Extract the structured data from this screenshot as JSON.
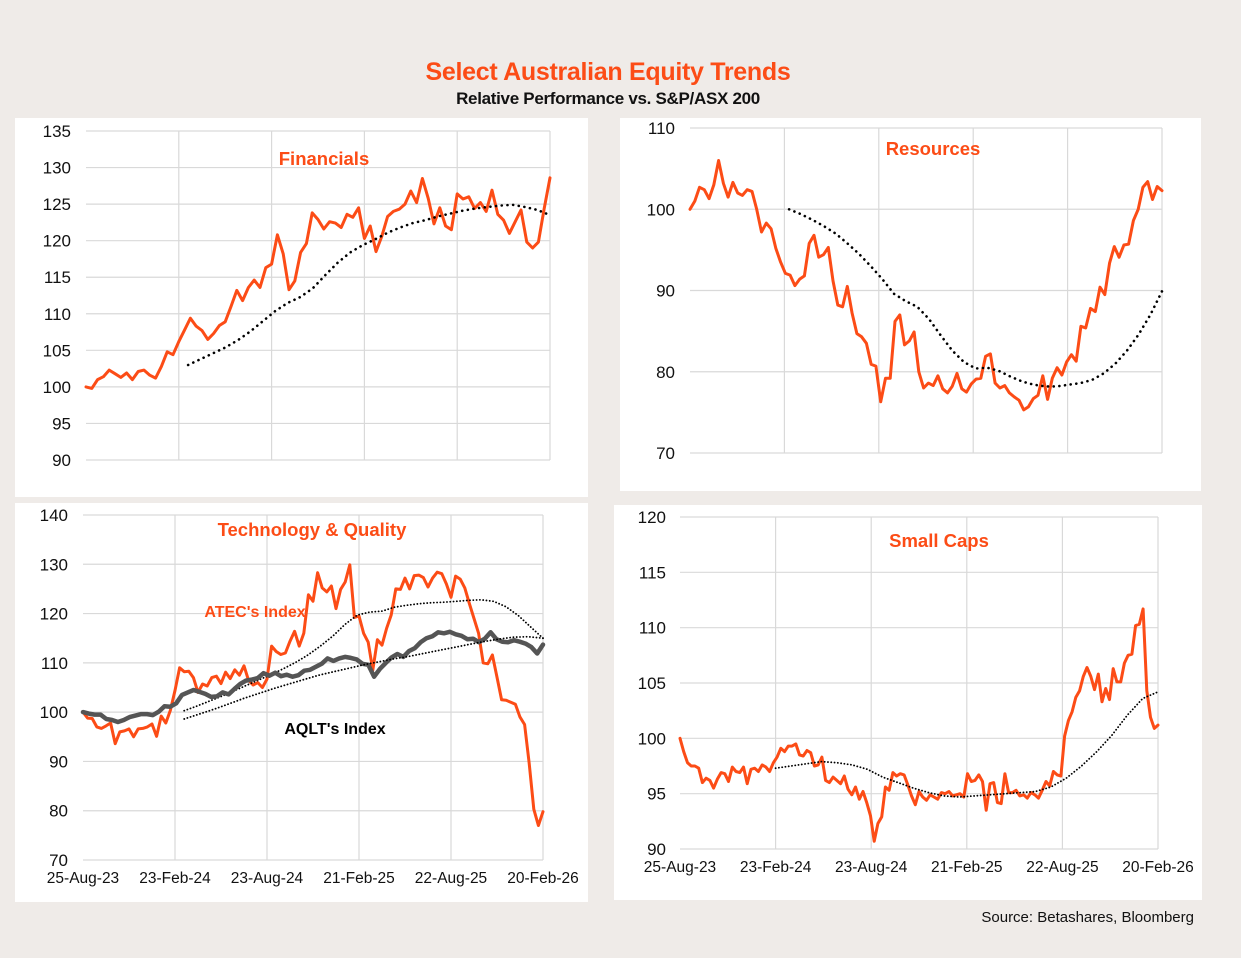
{
  "header": {
    "title": "Select Australian Equity Trends",
    "subtitle": "Relative Performance vs. S&P/ASX 200"
  },
  "source": "Source:  Betashares, Bloomberg",
  "colors": {
    "accent": "#fc4c16",
    "aqlt": "#555555",
    "trend": "#000000",
    "grid": "#d9d9d9",
    "background": "#efebe8"
  },
  "x_tick_labels": [
    "25-Aug-23",
    "23-Feb-24",
    "23-Aug-24",
    "21-Feb-25",
    "22-Aug-25",
    "20-Feb-26"
  ],
  "chart_data": [
    {
      "id": "financials",
      "type": "line",
      "title": "Financials",
      "xlabel": "",
      "ylabel": "",
      "x_range": [
        "25-Aug-23",
        "20-Feb-26"
      ],
      "x_ticks": [
        "25-Aug-23",
        "23-Feb-24",
        "23-Aug-24",
        "21-Feb-25",
        "22-Aug-25",
        "20-Feb-26"
      ],
      "show_x_tick_labels": false,
      "ylim": [
        90,
        135
      ],
      "yticks": [
        90,
        95,
        100,
        105,
        110,
        115,
        120,
        125,
        130,
        135
      ],
      "grid": true,
      "series": [
        {
          "name": "Financials",
          "style": "solid",
          "color": "#fc4c16",
          "start": 0,
          "values": [
            100,
            99.8,
            101,
            101.4,
            102.3,
            101.8,
            101.3,
            101.9,
            101,
            102.1,
            102.3,
            101.6,
            101.2,
            102.8,
            104.8,
            104.4,
            106.2,
            107.8,
            109.4,
            108.3,
            107.7,
            106.5,
            107.3,
            108.4,
            108.9,
            111,
            113.2,
            111.8,
            113.6,
            114.6,
            113.6,
            116.3,
            116.8,
            120.8,
            118.2,
            113.3,
            114.5,
            118.4,
            119.6,
            123.8,
            122.9,
            121.6,
            122.6,
            122.4,
            121.8,
            123.6,
            123.2,
            124.5,
            120.3,
            122,
            118.5,
            120.6,
            123.3,
            124,
            124.3,
            125,
            126.8,
            125.2,
            128.5,
            125.8,
            122.3,
            124.5,
            122,
            121.5,
            126.4,
            125.7,
            126,
            124.4,
            125.2,
            124,
            126.9,
            123.6,
            122.8,
            121,
            122.6,
            124.2,
            119.8,
            119,
            119.8,
            124.4,
            128.6
          ]
        },
        {
          "name": "Trend",
          "style": "dotted",
          "color": "#000000",
          "start": 0.22,
          "values": [
            103,
            103.8,
            104.6,
            105.4,
            106.4,
            107.6,
            109,
            110.4,
            111.5,
            112.3,
            113.5,
            115.3,
            117,
            118.4,
            119.4,
            120.2,
            121.1,
            121.8,
            122.4,
            122.8,
            123.3,
            123.7,
            124.1,
            124.4,
            124.6,
            124.8,
            124.9,
            124.6,
            124.2,
            123.5
          ]
        }
      ]
    },
    {
      "id": "resources",
      "type": "line",
      "title": "Resources",
      "xlabel": "",
      "ylabel": "",
      "x_range": [
        "25-Aug-23",
        "20-Feb-26"
      ],
      "x_ticks": [
        "25-Aug-23",
        "23-Feb-24",
        "23-Aug-24",
        "21-Feb-25",
        "22-Aug-25",
        "20-Feb-26"
      ],
      "show_x_tick_labels": false,
      "ylim": [
        70,
        110
      ],
      "yticks": [
        70,
        80,
        90,
        100,
        110
      ],
      "grid": true,
      "series": [
        {
          "name": "Resources",
          "style": "solid",
          "color": "#fc4c16",
          "start": 0,
          "values": [
            100,
            101,
            102.7,
            102.4,
            101.3,
            103,
            106,
            103.2,
            101.5,
            103.3,
            102,
            101.7,
            102.4,
            102.2,
            100,
            97.2,
            98.3,
            97.6,
            95.2,
            93.5,
            92.1,
            91.9,
            90.6,
            91.4,
            91.8,
            95.8,
            96.8,
            94.1,
            94.4,
            95.3,
            91.2,
            88.2,
            88,
            90.5,
            87.2,
            84.7,
            84.3,
            83.5,
            80.9,
            80.7,
            76.3,
            79.2,
            79.2,
            86.2,
            87,
            83.3,
            83.8,
            84.9,
            80,
            78,
            78.6,
            78.3,
            79.5,
            77.9,
            77.4,
            78.2,
            79.8,
            77.9,
            77.5,
            78.5,
            79.1,
            79.2,
            81.9,
            82.2,
            78.6,
            78,
            78.3,
            77.4,
            76.9,
            76.5,
            75.3,
            75.7,
            76.7,
            77.1,
            79.5,
            76.6,
            79.2,
            80.5,
            79.6,
            81.2,
            82.1,
            81.3,
            85.6,
            85.4,
            87.8,
            87.4,
            90.4,
            89.5,
            93.4,
            95.4,
            94.1,
            95.6,
            95.7,
            98.6,
            100,
            102.7,
            103.4,
            101.2,
            102.8,
            102.3
          ]
        },
        {
          "name": "Trend",
          "style": "dotted",
          "color": "#000000",
          "start": 0.21,
          "values": [
            100,
            99.4,
            98.7,
            97.9,
            97,
            95.8,
            94.5,
            93,
            91.4,
            89.6,
            88.7,
            88,
            86.5,
            84.5,
            82.6,
            81.2,
            80.4,
            80.5,
            80.1,
            79.4,
            78.8,
            78.4,
            78.2,
            78.2,
            78.4,
            78.6,
            79,
            79.8,
            81,
            82.6,
            84.6,
            87,
            89.9
          ]
        }
      ]
    },
    {
      "id": "technology-quality",
      "type": "line",
      "title": "Technology & Quality",
      "xlabel": "",
      "ylabel": "",
      "x_range": [
        "25-Aug-23",
        "20-Feb-26"
      ],
      "x_ticks": [
        "25-Aug-23",
        "23-Feb-24",
        "23-Aug-24",
        "21-Feb-25",
        "22-Aug-25",
        "20-Feb-26"
      ],
      "show_x_tick_labels": true,
      "ylim": [
        70,
        140
      ],
      "yticks": [
        70,
        80,
        90,
        100,
        110,
        120,
        130,
        140
      ],
      "grid": true,
      "annotations": [
        {
          "text": "ATEC's Index",
          "color": "#fc4c16"
        },
        {
          "text": "AQLT's Index",
          "color": "#000000"
        }
      ],
      "series": [
        {
          "name": "ATEC's Index",
          "style": "solid",
          "color": "#fc4c16",
          "start": 0,
          "values": [
            100,
            98.8,
            98.7,
            97,
            96.7,
            97.2,
            97.8,
            93.6,
            96,
            96.2,
            96.6,
            95,
            96.6,
            96.7,
            97,
            97.6,
            95.1,
            99.2,
            97.8,
            100.4,
            104.4,
            109,
            108.2,
            108.3,
            107,
            104,
            105.7,
            105.3,
            107,
            107.3,
            105.8,
            108.1,
            106.8,
            108.6,
            107.5,
            109.4,
            106.4,
            105.5,
            106,
            105,
            106.7,
            113.4,
            112.3,
            111.7,
            112,
            114.4,
            116.4,
            113.4,
            116,
            123.8,
            122.5,
            128.3,
            125.2,
            124.4,
            125.6,
            121,
            124.9,
            126.4,
            129.9,
            119.2,
            119.5,
            116,
            114.2,
            108.5,
            114.7,
            113.6,
            117,
            119.7,
            125,
            124.9,
            127.2,
            125,
            127.7,
            127.8,
            127.3,
            125.4,
            127.2,
            128.4,
            128.1,
            126,
            123.3,
            127.6,
            127,
            125.2,
            122,
            119,
            116,
            110,
            109.8,
            111.6,
            107.1,
            102.5,
            102.4,
            102,
            101.6,
            99,
            97.5,
            89.6,
            80.3,
            77,
            79.8
          ]
        },
        {
          "name": "ATEC Trend",
          "style": "dotted",
          "color": "#000000",
          "start": 0.22,
          "values": [
            100.3,
            101.2,
            102.2,
            103.2,
            104.3,
            105.4,
            106.5,
            107.6,
            108.8,
            110.1,
            111.6,
            113.4,
            115.4,
            117.8,
            119.7,
            120.3,
            120.5,
            121.3,
            121.7,
            122,
            122.2,
            122.3,
            122.5,
            122.7,
            122.8,
            122.5,
            121.4,
            119.6,
            117.3,
            115
          ]
        },
        {
          "name": "AQLT's Index",
          "style": "thick",
          "color": "#555555",
          "start": 0,
          "values": [
            100,
            99.7,
            99.5,
            99.5,
            98.6,
            98.4,
            98,
            98.4,
            99,
            99.3,
            99.6,
            99.6,
            99.4,
            100.1,
            101.2,
            101.1,
            101.8,
            103.5,
            104,
            104.5,
            104.1,
            103.7,
            103.1,
            103.2,
            104,
            103.6,
            104.7,
            105.7,
            106.4,
            106.6,
            106.9,
            107.9,
            107.4,
            108,
            107.3,
            107.6,
            107.2,
            107.5,
            108.4,
            108.6,
            109.2,
            109.8,
            110.9,
            110.4,
            110.9,
            111.2,
            111,
            110.7,
            109.8,
            109.6,
            107.2,
            108.8,
            110,
            111.1,
            111.8,
            111.2,
            112.4,
            113,
            114.2,
            115,
            115.4,
            116.2,
            116,
            116.3,
            115.8,
            115.5,
            114.8,
            114.9,
            114.2,
            114.9,
            116.2,
            114.8,
            114.3,
            114.2,
            114.6,
            114.3,
            113.9,
            113.2,
            111.9,
            113.7
          ]
        },
        {
          "name": "AQLT Trend",
          "style": "dotted",
          "color": "#000000",
          "start": 0.22,
          "values": [
            98.6,
            99.6,
            100.6,
            101.7,
            102.8,
            103.8,
            104.8,
            105.7,
            106.6,
            107.5,
            108.2,
            108.9,
            109.6,
            110.2,
            110.8,
            111.3,
            111.9,
            112.5,
            113.1,
            113.7,
            114.3,
            114.8,
            115.2,
            115.3,
            115
          ]
        }
      ]
    },
    {
      "id": "small-caps",
      "type": "line",
      "title": "Small Caps",
      "xlabel": "",
      "ylabel": "",
      "x_range": [
        "25-Aug-23",
        "20-Feb-26"
      ],
      "x_ticks": [
        "25-Aug-23",
        "23-Feb-24",
        "23-Aug-24",
        "21-Feb-25",
        "22-Aug-25",
        "20-Feb-26"
      ],
      "show_x_tick_labels": true,
      "ylim": [
        90,
        120
      ],
      "yticks": [
        90,
        95,
        100,
        105,
        110,
        115,
        120
      ],
      "grid": true,
      "series": [
        {
          "name": "Small Caps",
          "style": "solid",
          "color": "#fc4c16",
          "start": 0,
          "values": [
            100,
            98.8,
            97.8,
            97.5,
            97.5,
            97.3,
            96,
            96.4,
            96.2,
            95.5,
            96.3,
            96.9,
            96.8,
            96.1,
            97.4,
            97,
            96.9,
            97.4,
            95.9,
            97.2,
            97.3,
            97,
            97.6,
            97.4,
            97,
            97.8,
            98.3,
            99.1,
            98.8,
            99.3,
            99.3,
            99.5,
            98.5,
            98.4,
            98.9,
            98.7,
            97.5,
            97.6,
            98.3,
            96.2,
            96,
            96.5,
            96.2,
            95.9,
            96.6,
            95.4,
            94.9,
            95.6,
            94.5,
            95.2,
            94.2,
            93,
            90.7,
            92.3,
            92.9,
            95.6,
            95.3,
            96.9,
            96.6,
            96.8,
            96.7,
            95.8,
            94.8,
            94,
            95.2,
            94.7,
            94.4,
            94.9,
            94.7,
            94.5,
            95.1,
            95,
            95.2,
            94.8,
            94.9,
            95,
            94.7,
            96.8,
            96.1,
            96.2,
            96.7,
            96.1,
            93.5,
            95.9,
            96,
            94.2,
            94.1,
            96.8,
            95.1,
            95.1,
            95.3,
            94.8,
            94.9,
            94.6,
            95.1,
            94.9,
            94.6,
            95.3,
            96.1,
            95.7,
            97,
            96.7,
            96.6,
            100.2,
            101.6,
            102.4,
            103.7,
            104.3,
            105.6,
            106.4,
            105.6,
            104.4,
            105.8,
            103.3,
            104.5,
            103.5,
            106.3,
            105.1,
            105.1,
            106.8,
            107.5,
            107.6,
            110.2,
            110.3,
            111.7,
            104.3,
            101.9,
            100.9,
            101.2
          ]
        },
        {
          "name": "Trend",
          "style": "dotted",
          "color": "#000000",
          "start": 0.2,
          "values": [
            97.3,
            97.5,
            97.7,
            97.9,
            97.8,
            97.6,
            97.2,
            96.5,
            96,
            95.5,
            95.1,
            94.8,
            94.7,
            94.8,
            94.9,
            95,
            95.1,
            95.2,
            95.6,
            96.4,
            97.5,
            98.8,
            100.3,
            102.1,
            103.6,
            104.2
          ]
        }
      ]
    }
  ]
}
